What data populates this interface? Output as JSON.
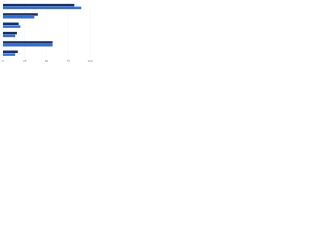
{
  "chart_data": {
    "type": "hbar",
    "categories": [
      null,
      null,
      null,
      null,
      null,
      null
    ],
    "series": [
      {
        "color": "#1b2f5e",
        "values": [
          82,
          40,
          18,
          16,
          57,
          17
        ]
      },
      {
        "color": "#2e6fd9",
        "values": [
          90,
          36,
          20,
          14,
          57,
          14
        ]
      }
    ],
    "xlim": [
      0,
      100
    ],
    "xticks": [
      0,
      25,
      50,
      75,
      100
    ],
    "grid": true
  }
}
